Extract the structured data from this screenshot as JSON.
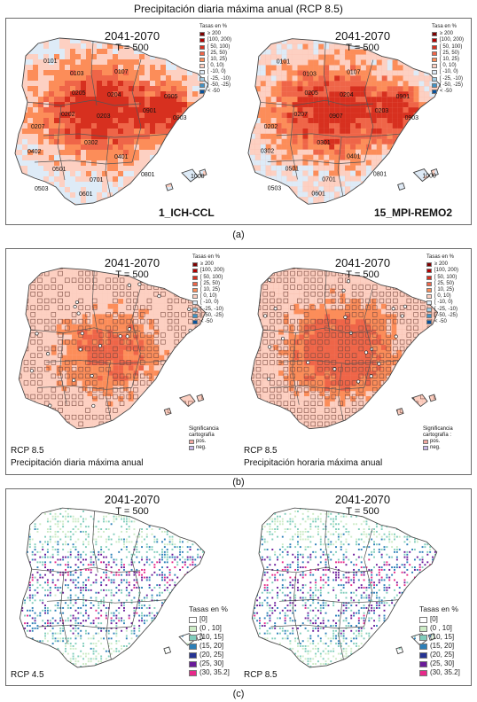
{
  "figure": {
    "title": "Precipitación diaria máxima anual (RCP 8.5)"
  },
  "panels": [
    {
      "label": "(a)",
      "maps": [
        {
          "period": "2041-2070",
          "return_period": "T = 500",
          "model": "1_ICH-CCL",
          "legend_title": "Tasas en %",
          "legend": [
            "≥ 200",
            "[100, 200)",
            "[ 50, 100)",
            "[ 25, 50)",
            "[ 10, 25)",
            "[ 0, 10)",
            "[ -10, 0)",
            "[ -25, -10)",
            "[ -50, -25)",
            "< -50"
          ],
          "zones": [
            "0101",
            "0103",
            "0107",
            "0205",
            "0204",
            "0905",
            "0203",
            "0207",
            "0202",
            "0901",
            "0903",
            "0302",
            "0402",
            "0401",
            "0501",
            "0701",
            "0801",
            "0503",
            "0601",
            "1000"
          ]
        },
        {
          "period": "2041-2070",
          "return_period": "T = 500",
          "model": "15_MPI-REMO2",
          "legend_title": "Tasa en %",
          "legend": [
            "≥ 200",
            "[100, 200)",
            "[ 50, 100)",
            "[ 25, 50)",
            "[ 10, 25)",
            "[ 0, 10)",
            "[ -10, 0)",
            "[ -25, -10)",
            "[ -50, -25)",
            "< -50"
          ],
          "zones": [
            "0101",
            "0103",
            "0107",
            "0205",
            "0204",
            "0901",
            "0907",
            "0202",
            "0207",
            "0203",
            "0903",
            "0301",
            "0302",
            "0401",
            "0501",
            "0701",
            "0801",
            "0503",
            "0601",
            "1000"
          ]
        }
      ]
    },
    {
      "label": "(b)",
      "maps": [
        {
          "period": "2041-2070",
          "return_period": "T = 500",
          "scenario": "RCP 8.5",
          "variable": "Precipitación diaria máxima anual",
          "legend_title": "Tasas en %",
          "legend": [
            "≥ 200",
            "[100, 200)",
            "[ 50, 100)",
            "[ 25, 50)",
            "[ 10, 25)",
            "[ 0, 10)",
            "[ -10, 0)",
            "[ -25, -10)",
            "[ -50, -25)",
            "< -50"
          ],
          "sig_title_1": "Significancia",
          "sig_title_2": "cartografía",
          "sig_items": [
            "pos.",
            "neg."
          ]
        },
        {
          "period": "2041-2070",
          "return_period": "T = 500",
          "scenario": "RCP 8.5",
          "variable": "Precipitación horaria máxima anual",
          "legend_title": "Tasas en %",
          "legend": [
            "≥ 200",
            "[100, 200)",
            "[ 50, 100)",
            "[ 25, 50)",
            "[ 10, 25)",
            "[ 0, 10)",
            "[ -10, 0)",
            "[ -25, -10)",
            "[ -50, -25)",
            "< -50"
          ],
          "sig_title_1": "Significancia",
          "sig_title_2": "cartografía :",
          "sig_items": [
            "pos.",
            "neg."
          ]
        }
      ]
    },
    {
      "label": "(c)",
      "maps": [
        {
          "period": "2041-2070",
          "return_period": "T = 500",
          "scenario": "RCP 4.5",
          "legend_title": "Tasas en %",
          "legend": [
            "[0]",
            "(0 , 10]",
            "(10, 15]",
            "(15, 20]",
            "(20, 25]",
            "(25, 30]",
            "(30, 35.2]"
          ]
        },
        {
          "period": "2041-2070",
          "return_period": "T = 500",
          "scenario": "RCP 8.5",
          "legend_title": "Tasas en %",
          "legend": [
            "[0]",
            "(0 , 10]",
            "(10, 15]",
            "(15, 20]",
            "(20, 25]",
            "(25, 30]",
            "(30, 35.2]"
          ]
        }
      ]
    }
  ],
  "colors": {
    "ramp_ab": [
      "#7f0000",
      "#b30000",
      "#d7301f",
      "#ef6548",
      "#fc8d59",
      "#fdd0c2",
      "#deebf7",
      "#9ecae1",
      "#4292c6",
      "#08519c"
    ],
    "ramp_c": [
      "#ffffff",
      "#ccebc5",
      "#7fcdbb",
      "#2c7fb8",
      "#253494",
      "#6a1b9a",
      "#e7298a"
    ],
    "sig_pos": "#f2a7a0",
    "sig_neg": "#c7b7e8"
  }
}
